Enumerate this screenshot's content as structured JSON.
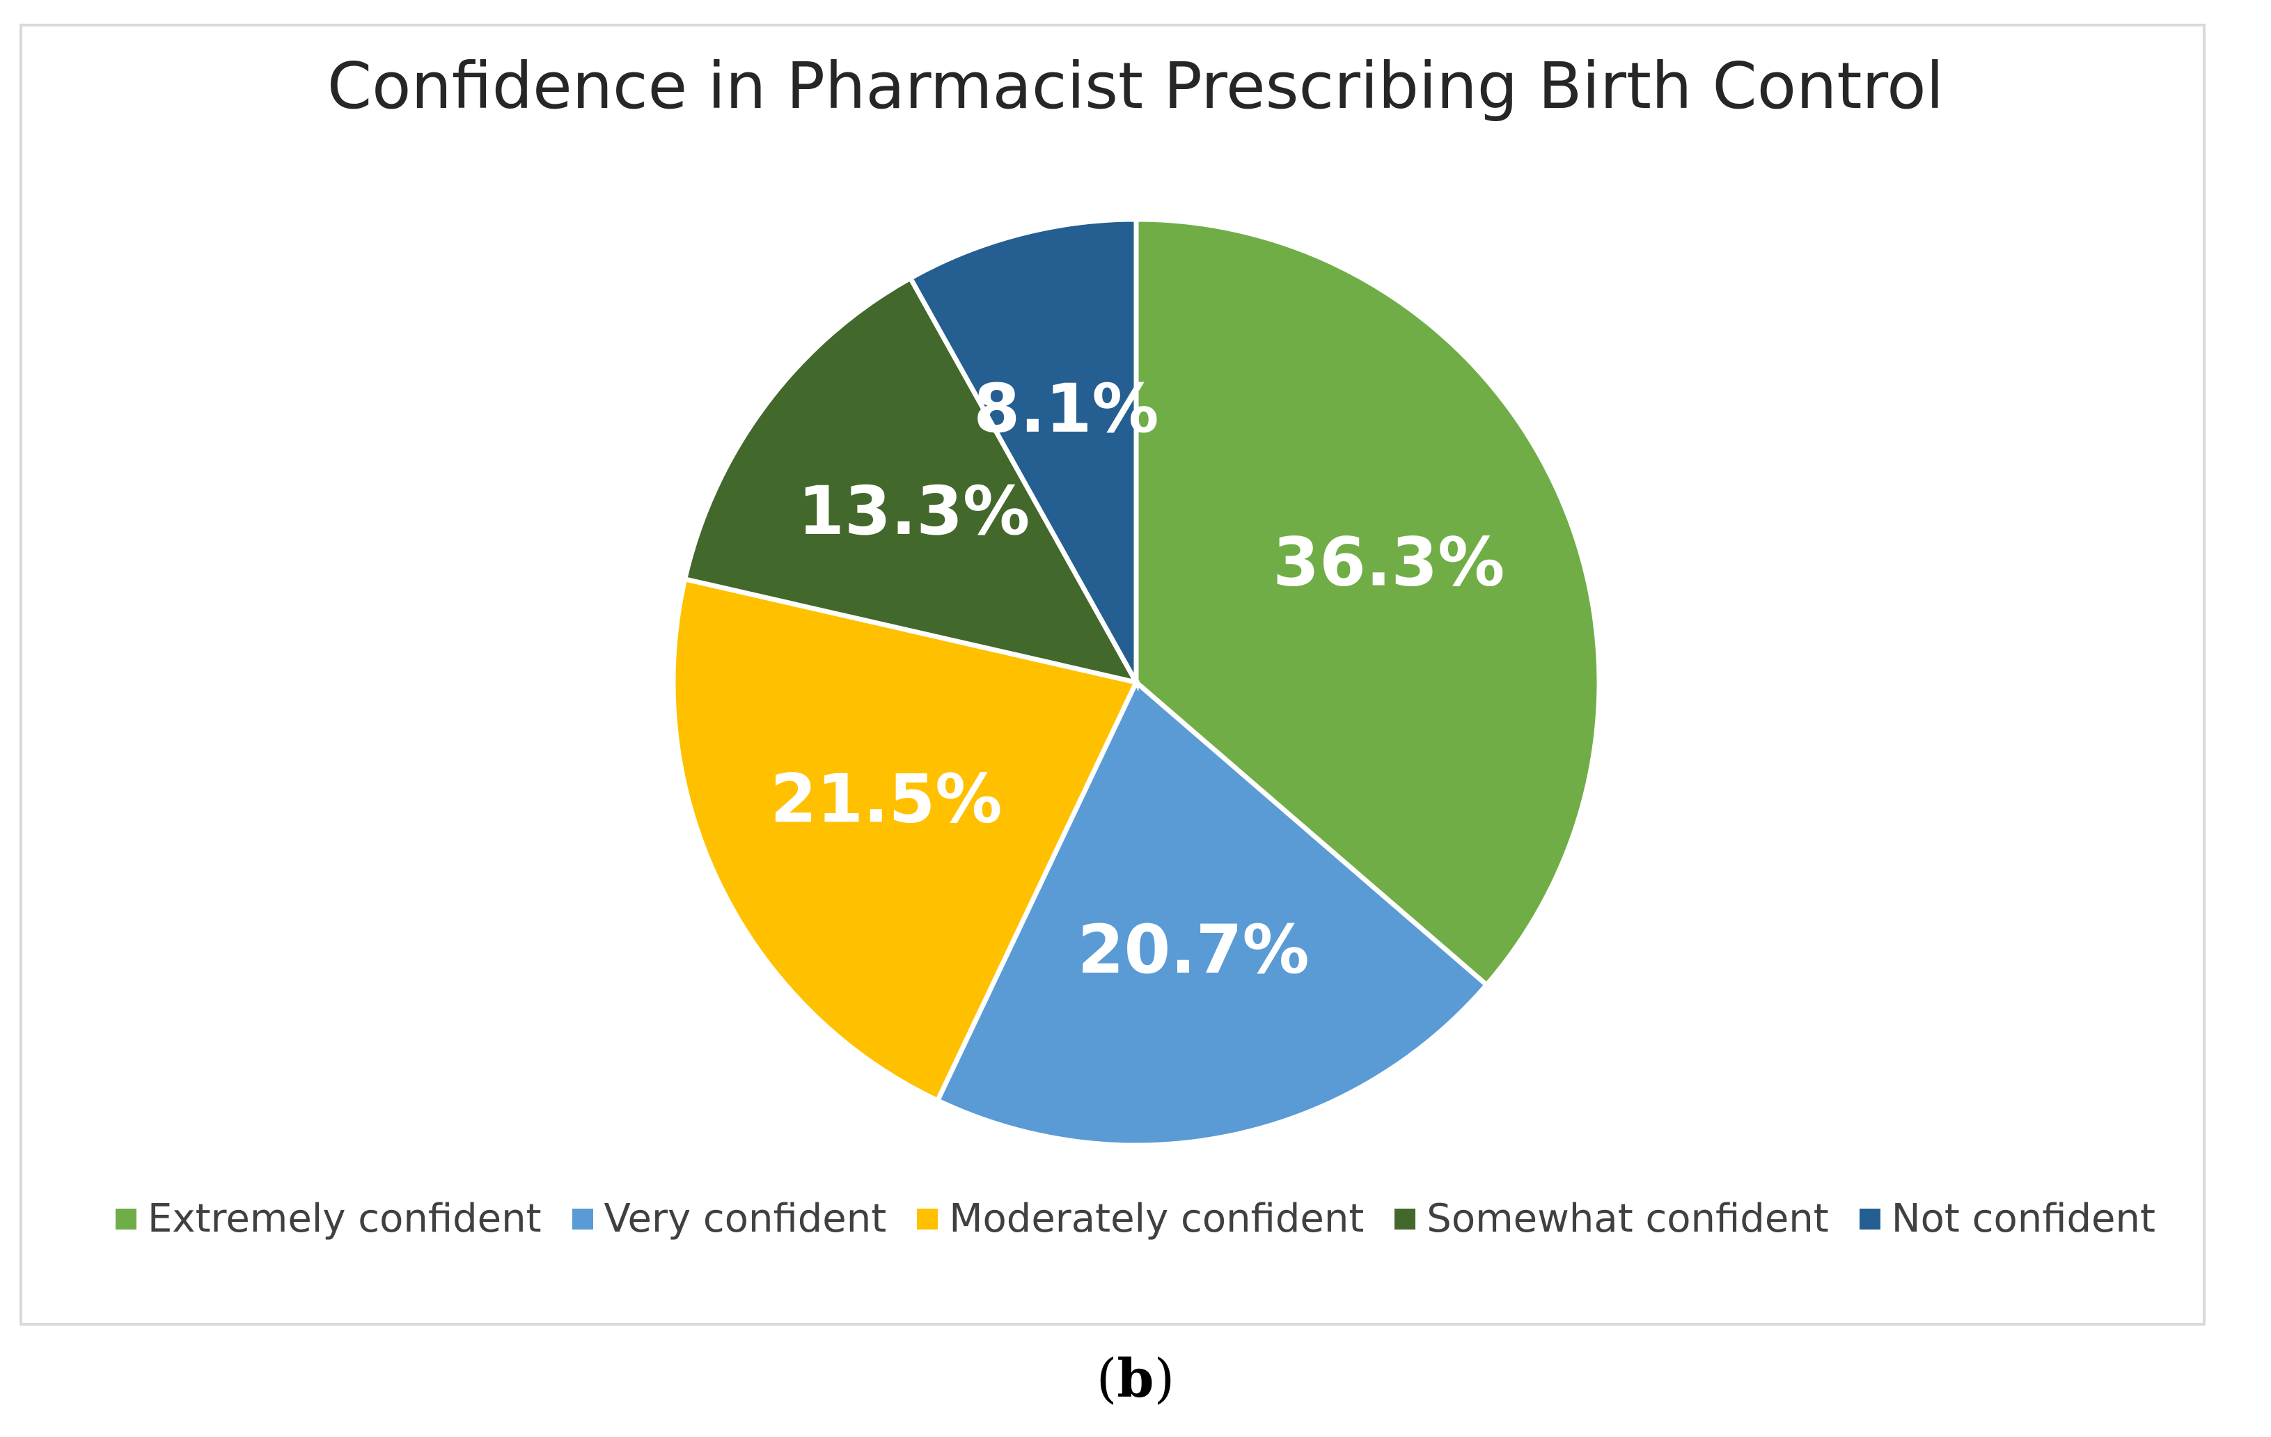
{
  "chart_data": {
    "type": "pie",
    "title": "Confidence in Pharmacist Prescribing Birth Control",
    "categories": [
      "Extremely confident",
      "Very confident",
      "Moderately confident",
      "Somewhat confident",
      "Not confident"
    ],
    "values": [
      36.3,
      20.7,
      21.5,
      13.3,
      8.1
    ],
    "labels": [
      "36.3%",
      "20.7%",
      "21.5%",
      "13.3%",
      "8.1%"
    ],
    "colors": [
      "#70AD47",
      "#5B9BD5",
      "#FFC000",
      "#43682B",
      "#255E91"
    ],
    "legend_position": "bottom"
  },
  "caption": {
    "open": "(",
    "letter": "b",
    "close": ")"
  }
}
